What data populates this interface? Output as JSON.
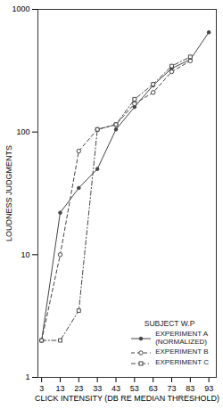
{
  "chart_data": {
    "type": "line",
    "title": "SUBJECT W.P",
    "x_label": "CLICK INTENSITY (DB RE MEDIAN THRESHOLD)",
    "y_label": "LOUDNESS JUDGMENTS",
    "x": [
      3,
      13,
      23,
      33,
      43,
      53,
      63,
      73,
      83,
      93
    ],
    "series": [
      {
        "name": "EXPERIMENT A\n(NORMALIZED)",
        "color": "#444444",
        "marker": "dot",
        "line_style": "solid",
        "values": [
          2.0,
          22.0,
          35.0,
          50.0,
          105.0,
          160.0,
          240.0,
          330.0,
          390.0,
          650.0
        ]
      },
      {
        "name": "EXPERIMENT B",
        "color": "#444444",
        "marker": "circle",
        "line_style": "dashed",
        "values": [
          2.0,
          10.0,
          70.0,
          105.0,
          115.0,
          170.0,
          210.0,
          310.0,
          380.0,
          null
        ]
      },
      {
        "name": "EXPERIMENT C",
        "color": "#444444",
        "marker": "square",
        "line_style": "dashdot",
        "values": [
          2.0,
          2.0,
          3.5,
          105.0,
          115.0,
          185.0,
          245.0,
          345.0,
          410.0,
          null
        ]
      }
    ],
    "xlim": [
      1,
      97
    ],
    "xticks": [
      3,
      13,
      23,
      33,
      43,
      53,
      63,
      73,
      83,
      93
    ],
    "ylim": [
      1,
      1000
    ],
    "yticks": [
      1,
      10,
      100,
      1000
    ],
    "log": "y",
    "grid": false,
    "legend": "lower right"
  }
}
